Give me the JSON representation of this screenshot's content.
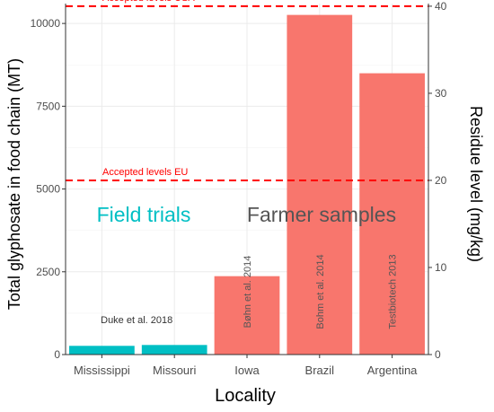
{
  "chart_data": {
    "type": "bar",
    "xlabel": "Locality",
    "ylabel": "Total glyphosate in food chain (MT)",
    "y2label": "Residue level (mg/kg)",
    "ylim": [
      0,
      10600
    ],
    "y2lim": [
      0,
      40.3
    ],
    "yticks": [
      0,
      2500,
      5000,
      7500,
      10000
    ],
    "y2ticks": [
      0,
      10,
      20,
      30,
      40
    ],
    "grid": true,
    "categories": [
      "Mississippi",
      "Missouri",
      "Iowa",
      "Brazil",
      "Argentina"
    ],
    "series": [
      {
        "group": "field",
        "color": "#00BFC4",
        "values": [
          {
            "category": "Mississippi",
            "y": 1.0
          },
          {
            "category": "Missouri",
            "y": 1.1
          }
        ]
      },
      {
        "group": "farmer",
        "color": "#F8766D",
        "values": [
          {
            "category": "Iowa",
            "y": 9.0
          },
          {
            "category": "Brazil",
            "y": 39.0
          },
          {
            "category": "Argentina",
            "y": 32.3
          }
        ]
      }
    ],
    "reference_lines": [
      {
        "label": "Accepted levels USA",
        "y2": 40,
        "color": "#FF0000"
      },
      {
        "label": "Accepted levels EU",
        "y2": 20,
        "color": "#FF0000"
      }
    ],
    "group_labels": [
      {
        "text": "Field trials",
        "color": "#00BFC4"
      },
      {
        "text": "Farmer samples",
        "color": "#555555"
      }
    ],
    "bar_annotations": [
      {
        "category": "Missouri",
        "text": "Duke et al. 2018",
        "rotated": false
      },
      {
        "category": "Iowa",
        "text": "Bøhn et al. 2014",
        "rotated": true
      },
      {
        "category": "Brazil",
        "text": "Bohm et al. 2014",
        "rotated": true
      },
      {
        "category": "Argentina",
        "text": "Testbiotech 2013",
        "rotated": true
      }
    ]
  }
}
